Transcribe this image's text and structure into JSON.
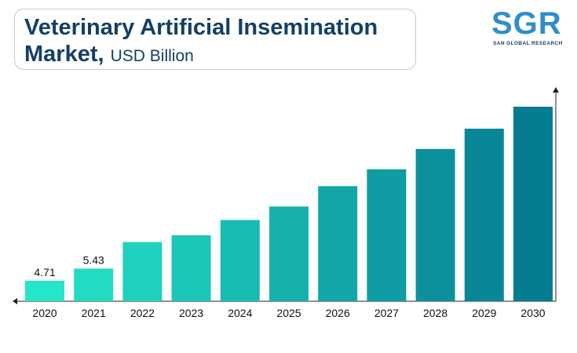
{
  "header": {
    "title_line1": "Veterinary Artificial Insemination",
    "title_line2": "Market,",
    "title_unit": "USD Billion"
  },
  "logo": {
    "letters": "SGR",
    "subtitle": "SAN GLOBAL RESEARCH",
    "color": "#2f8fc8"
  },
  "chart_data": {
    "type": "bar",
    "title": "Veterinary Artificial Insemination Market, USD Billion",
    "categories": [
      "2020",
      "2021",
      "2022",
      "2023",
      "2024",
      "2025",
      "2026",
      "2027",
      "2028",
      "2029",
      "2030"
    ],
    "values": [
      4.71,
      5.43,
      7.0,
      7.4,
      8.3,
      9.1,
      10.3,
      11.3,
      12.5,
      13.7,
      15.0
    ],
    "data_labels": [
      "4.71",
      "5.43",
      "",
      "",
      "",
      "",
      "",
      "",
      "",
      "",
      ""
    ],
    "ylim": [
      3.5,
      15.0
    ],
    "xlabel": "",
    "ylabel": "",
    "grid": false,
    "legend": "none",
    "colors": {
      "start": "#25e6c9",
      "end": "#067c91"
    }
  }
}
